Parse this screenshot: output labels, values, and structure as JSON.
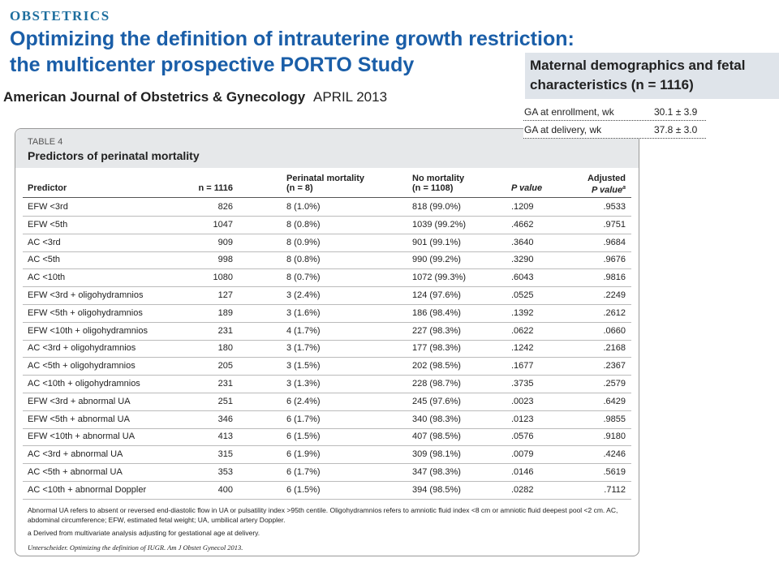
{
  "header": {
    "section": "OBSTETRICS",
    "title_lines": [
      "Optimizing the definition of intrauterine growth restriction:",
      "the multicenter prospective PORTO Study"
    ],
    "journal": "American Journal of Obstetrics & Gynecology",
    "date": "APRIL 2013"
  },
  "overlay": {
    "title": "Maternal demographics and fetal characteristics (n = 1116)",
    "rows": [
      [
        "GA at enrollment, wk",
        "30.1 ± 3.9"
      ],
      [
        "GA at delivery, wk",
        "37.8 ± 3.0"
      ]
    ]
  },
  "table": {
    "label": "TABLE 4",
    "caption": "Predictors of perinatal mortality",
    "columns": [
      [
        "Predictor"
      ],
      [
        "n = 1116"
      ],
      [
        "Perinatal mortality",
        "(n = 8)"
      ],
      [
        "No mortality",
        "(n = 1108)"
      ],
      [
        "P value"
      ],
      [
        "Adjusted",
        "P value"
      ]
    ],
    "column_note": "a",
    "rows": [
      [
        "EFW <3rd",
        "826",
        "8 (1.0%)",
        "818 (99.0%)",
        ".1209",
        ".9533"
      ],
      [
        "EFW <5th",
        "1047",
        "8 (0.8%)",
        "1039 (99.2%)",
        ".4662",
        ".9751"
      ],
      [
        "AC <3rd",
        "909",
        "8 (0.9%)",
        "901 (99.1%)",
        ".3640",
        ".9684"
      ],
      [
        "AC <5th",
        "998",
        "8 (0.8%)",
        "990 (99.2%)",
        ".3290",
        ".9676"
      ],
      [
        "AC <10th",
        "1080",
        "8 (0.7%)",
        "1072 (99.3%)",
        ".6043",
        ".9816"
      ],
      [
        "EFW <3rd + oligohydramnios",
        "127",
        "3 (2.4%)",
        "124 (97.6%)",
        ".0525",
        ".2249"
      ],
      [
        "EFW <5th + oligohydramnios",
        "189",
        "3 (1.6%)",
        "186 (98.4%)",
        ".1392",
        ".2612"
      ],
      [
        "EFW <10th + oligohydramnios",
        "231",
        "4 (1.7%)",
        "227 (98.3%)",
        ".0622",
        ".0660"
      ],
      [
        "AC <3rd + oligohydramnios",
        "180",
        "3 (1.7%)",
        "177 (98.3%)",
        ".1242",
        ".2168"
      ],
      [
        "AC <5th + oligohydramnios",
        "205",
        "3 (1.5%)",
        "202 (98.5%)",
        ".1677",
        ".2367"
      ],
      [
        "AC <10th + oligohydramnios",
        "231",
        "3 (1.3%)",
        "228 (98.7%)",
        ".3735",
        ".2579"
      ],
      [
        "EFW <3rd + abnormal UA",
        "251",
        "6 (2.4%)",
        "245 (97.6%)",
        ".0023",
        ".6429"
      ],
      [
        "EFW <5th + abnormal UA",
        "346",
        "6 (1.7%)",
        "340 (98.3%)",
        ".0123",
        ".9855"
      ],
      [
        "EFW <10th + abnormal UA",
        "413",
        "6 (1.5%)",
        "407 (98.5%)",
        ".0576",
        ".9180"
      ],
      [
        "AC <3rd + abnormal UA",
        "315",
        "6 (1.9%)",
        "309 (98.1%)",
        ".0079",
        ".4246"
      ],
      [
        "AC <5th + abnormal UA",
        "353",
        "6 (1.7%)",
        "347 (98.3%)",
        ".0146",
        ".5619"
      ],
      [
        "AC <10th + abnormal Doppler",
        "400",
        "6 (1.5%)",
        "394 (98.5%)",
        ".0282",
        ".7112"
      ]
    ],
    "footnotes": [
      "Abnormal UA refers to absent or reversed end-diastolic flow in UA or pulsatility index >95th centile. Oligohydramnios refers to amniotic fluid index <8 cm or amniotic fluid deepest pool <2 cm. AC, abdominal circumference; EFW, estimated fetal weight; UA, umbilical artery Doppler.",
      "a Derived from multivariate analysis adjusting for gestational age at delivery.",
      "Unterscheider. Optimizing the definition of IUGR. Am J Obstet Gynecol 2013."
    ]
  }
}
